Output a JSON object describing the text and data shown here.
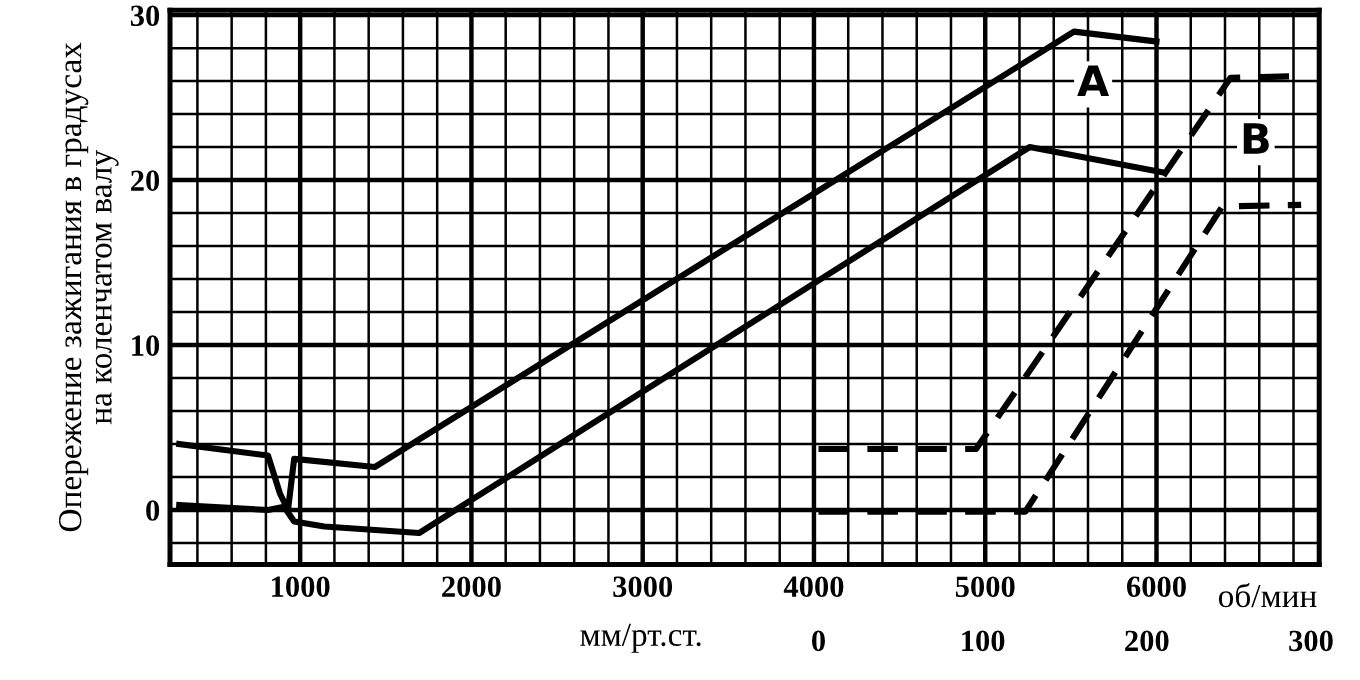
{
  "chart_data": {
    "type": "line",
    "ylabel": "Опережение зажигания в градусах\nна коленчатом валу",
    "xlabel": "об/мин",
    "x2label": "мм/рт.ст.",
    "xlim": [
      240,
      6950
    ],
    "xticks": [
      1000,
      2000,
      3000,
      4000,
      5000,
      6000
    ],
    "x2lim": [
      -395,
      305
    ],
    "x2ticks": [
      0,
      100,
      200,
      300
    ],
    "ylim": [
      -3.3,
      30.3
    ],
    "yticks": [
      0,
      10,
      20,
      30
    ],
    "grid": true,
    "marker": "none",
    "series": [
      {
        "color": "#000000",
        "line_style": "solid",
        "x": [
          294,
          812,
          882,
          929,
          965,
          1435,
          5518,
          6000
        ],
        "values": [
          4.0,
          3.3,
          1.0,
          0,
          3.1,
          2.6,
          29.0,
          28.4
        ]
      },
      {
        "color": "#000000",
        "line_style": "solid",
        "x": [
          294,
          812,
          906,
          965,
          1141,
          1694,
          5259,
          6024
        ],
        "values": [
          0.3,
          0,
          0.2,
          -0.7,
          -1.0,
          -1.4,
          22.0,
          20.5
        ]
      },
      {
        "color": "#000000",
        "line_style": "dashed",
        "axis": "x2",
        "x": [
          0,
          96,
          251,
          293
        ],
        "values": [
          3.7,
          3.7,
          26.2,
          26.3
        ]
      },
      {
        "color": "#000000",
        "line_style": "dashed",
        "axis": "x2",
        "x": [
          0,
          126,
          246,
          294
        ],
        "values": [
          -0.1,
          -0.1,
          18.4,
          18.5
        ]
      }
    ],
    "annotations": [
      {
        "text": "A",
        "x": 5630,
        "y": 25.8
      },
      {
        "text": "B",
        "x": 6580,
        "y": 22.3
      }
    ]
  }
}
